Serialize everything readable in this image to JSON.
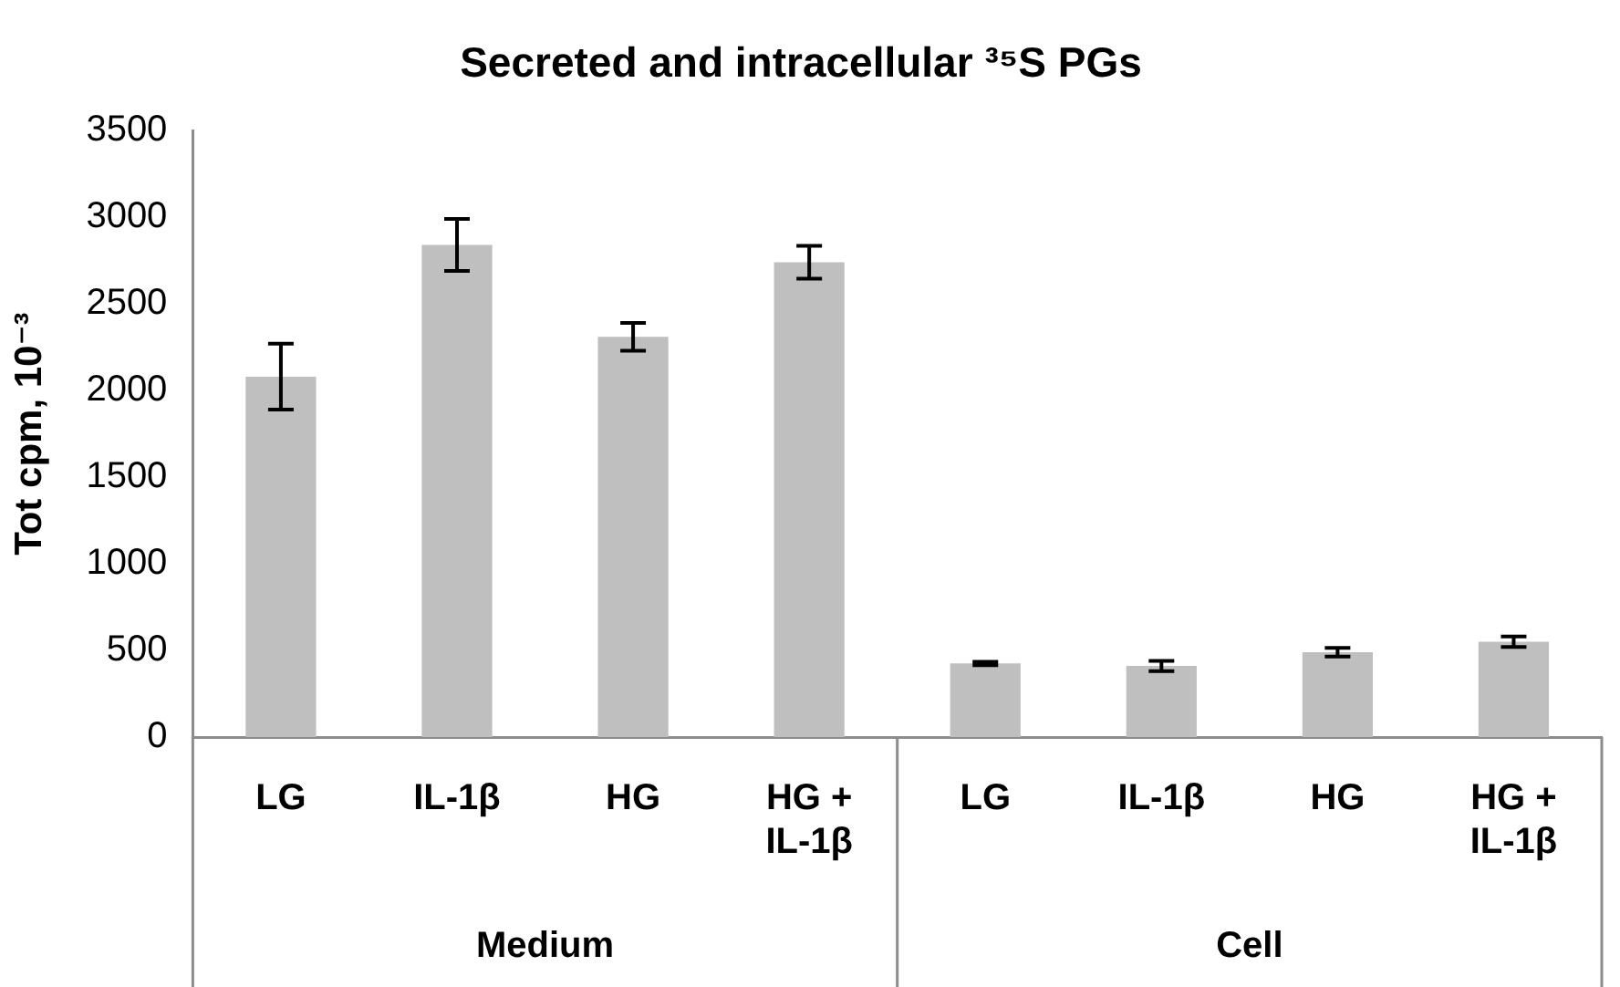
{
  "chart_data": {
    "type": "bar",
    "title": "Secreted and intracellular ³⁵S PGs",
    "ylabel": "Tot cpm, 10⁻³",
    "categories": [
      "LG",
      "IL-1β",
      "HG",
      "HG + IL-1β",
      "LG",
      "IL-1β",
      "HG",
      "HG + IL-1β"
    ],
    "values": [
      2080,
      2840,
      2310,
      2740,
      425,
      410,
      490,
      550
    ],
    "errors": [
      190,
      150,
      80,
      95,
      10,
      30,
      25,
      30
    ],
    "color": "#bfbfbf",
    "annotations": [
      "Medium",
      "Cell"
    ],
    "ylim": [
      0,
      3500
    ],
    "yticks": [
      0,
      500,
      1000,
      1500,
      2000,
      2500,
      3000,
      3500
    ],
    "grid": false,
    "legend": false
  }
}
